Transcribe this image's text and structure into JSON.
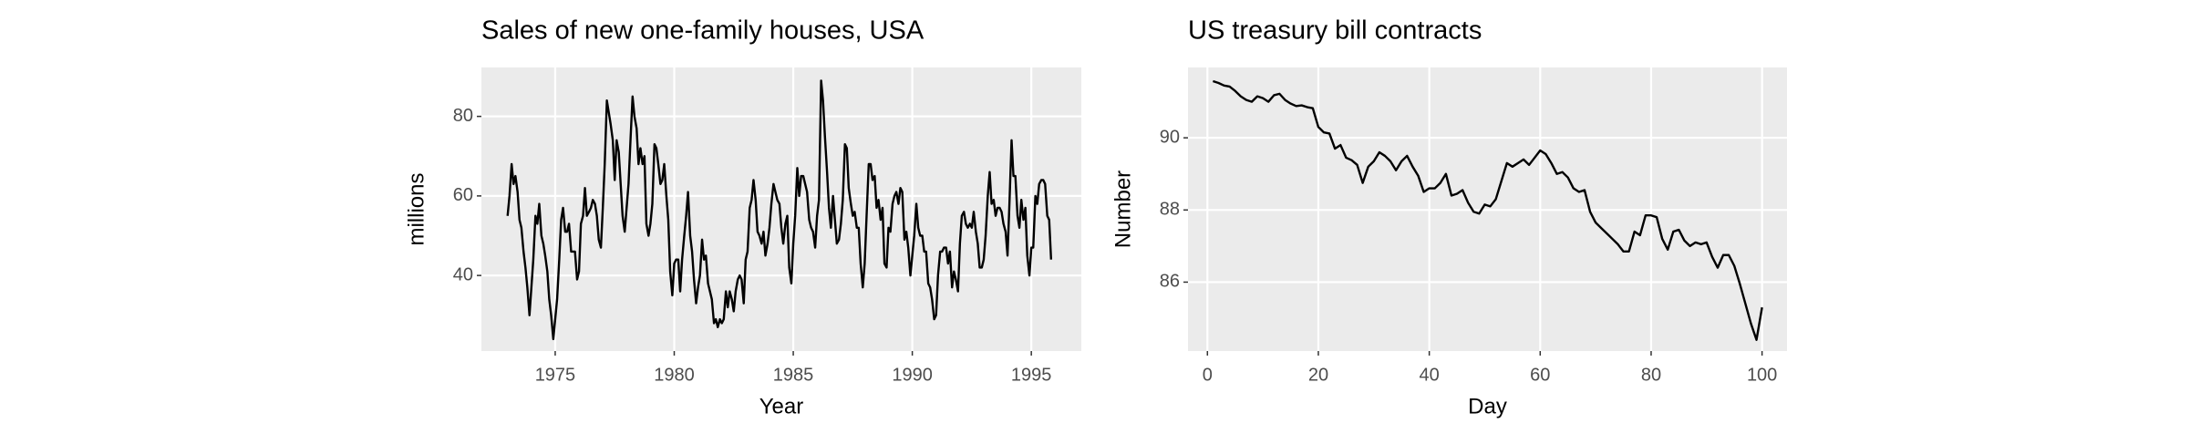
{
  "chart_data": [
    {
      "type": "line",
      "title": "Sales of new one-family houses, USA",
      "xlabel": "Year",
      "ylabel": "millions",
      "color": "#000000",
      "grid": true,
      "xlim": [
        1971.9,
        1997.1
      ],
      "ylim": [
        21,
        92.3
      ],
      "xticks": [
        1975,
        1980,
        1985,
        1990,
        1995
      ],
      "yticks": [
        40,
        60,
        80
      ],
      "x": [
        1973,
        1973.08,
        1973.17,
        1973.25,
        1973.33,
        1973.42,
        1973.5,
        1973.58,
        1973.67,
        1973.75,
        1973.83,
        1973.92,
        1974,
        1974.08,
        1974.17,
        1974.25,
        1974.33,
        1974.42,
        1974.5,
        1974.58,
        1974.67,
        1974.75,
        1974.83,
        1974.92,
        1975,
        1975.08,
        1975.17,
        1975.25,
        1975.33,
        1975.42,
        1975.5,
        1975.58,
        1975.67,
        1975.75,
        1975.83,
        1975.92,
        1976,
        1976.08,
        1976.17,
        1976.25,
        1976.33,
        1976.42,
        1976.5,
        1976.58,
        1976.67,
        1976.75,
        1976.83,
        1976.92,
        1977,
        1977.08,
        1977.17,
        1977.25,
        1977.33,
        1977.42,
        1977.5,
        1977.58,
        1977.67,
        1977.75,
        1977.83,
        1977.92,
        1978,
        1978.08,
        1978.17,
        1978.25,
        1978.33,
        1978.42,
        1978.5,
        1978.58,
        1978.67,
        1978.75,
        1978.83,
        1978.92,
        1979,
        1979.08,
        1979.17,
        1979.25,
        1979.33,
        1979.42,
        1979.5,
        1979.58,
        1979.67,
        1979.75,
        1979.83,
        1979.92,
        1980,
        1980.08,
        1980.17,
        1980.25,
        1980.33,
        1980.42,
        1980.5,
        1980.58,
        1980.67,
        1980.75,
        1980.83,
        1980.92,
        1981,
        1981.08,
        1981.17,
        1981.25,
        1981.33,
        1981.42,
        1981.5,
        1981.58,
        1981.67,
        1981.75,
        1981.83,
        1981.92,
        1982,
        1982.08,
        1982.17,
        1982.25,
        1982.33,
        1982.42,
        1982.5,
        1982.58,
        1982.67,
        1982.75,
        1982.83,
        1982.92,
        1983,
        1983.08,
        1983.17,
        1983.25,
        1983.33,
        1983.42,
        1983.5,
        1983.58,
        1983.67,
        1983.75,
        1983.83,
        1983.92,
        1984,
        1984.08,
        1984.17,
        1984.25,
        1984.33,
        1984.42,
        1984.5,
        1984.58,
        1984.67,
        1984.75,
        1984.83,
        1984.92,
        1985,
        1985.08,
        1985.17,
        1985.25,
        1985.33,
        1985.42,
        1985.5,
        1985.58,
        1985.67,
        1985.75,
        1985.83,
        1985.92,
        1986,
        1986.08,
        1986.17,
        1986.25,
        1986.33,
        1986.42,
        1986.5,
        1986.58,
        1986.67,
        1986.75,
        1986.83,
        1986.92,
        1987,
        1987.08,
        1987.17,
        1987.25,
        1987.33,
        1987.42,
        1987.5,
        1987.58,
        1987.67,
        1987.75,
        1987.83,
        1987.92,
        1988,
        1988.08,
        1988.17,
        1988.25,
        1988.33,
        1988.42,
        1988.5,
        1988.58,
        1988.67,
        1988.75,
        1988.83,
        1988.92,
        1989,
        1989.08,
        1989.17,
        1989.25,
        1989.33,
        1989.42,
        1989.5,
        1989.58,
        1989.67,
        1989.75,
        1989.83,
        1989.92,
        1990,
        1990.08,
        1990.17,
        1990.25,
        1990.33,
        1990.42,
        1990.5,
        1990.58,
        1990.67,
        1990.75,
        1990.83,
        1990.92,
        1991,
        1991.08,
        1991.17,
        1991.25,
        1991.33,
        1991.42,
        1991.5,
        1991.58,
        1991.67,
        1991.75,
        1991.83,
        1991.92,
        1992,
        1992.08,
        1992.17,
        1992.25,
        1992.33,
        1992.42,
        1992.5,
        1992.58,
        1992.67,
        1992.75,
        1992.83,
        1992.92,
        1993,
        1993.08,
        1993.17,
        1993.25,
        1993.33,
        1993.42,
        1993.5,
        1993.58,
        1993.67,
        1993.75,
        1993.83,
        1993.92,
        1994,
        1994.08,
        1994.17,
        1994.25,
        1994.33,
        1994.42,
        1994.5,
        1994.58,
        1994.67,
        1994.75,
        1994.83,
        1994.92,
        1995,
        1995.08,
        1995.17,
        1995.25,
        1995.33,
        1995.42,
        1995.5,
        1995.58,
        1995.67,
        1995.75,
        1995.83
      ],
      "values": [
        55,
        60,
        68,
        63,
        65,
        61,
        54,
        52,
        46,
        42,
        37,
        30,
        37,
        44,
        55,
        53,
        58,
        50,
        48,
        45,
        41,
        34,
        30,
        24,
        29,
        34,
        44,
        54,
        57,
        51,
        51,
        53,
        46,
        46,
        46,
        39,
        41,
        53,
        55,
        62,
        55,
        56,
        57,
        59,
        58,
        55,
        49,
        47,
        57,
        68,
        84,
        81,
        78,
        74,
        64,
        74,
        71,
        63,
        55,
        51,
        57,
        63,
        75,
        85,
        80,
        77,
        68,
        72,
        68,
        70,
        53,
        50,
        53,
        58,
        73,
        72,
        68,
        63,
        64,
        68,
        60,
        54,
        41,
        35,
        43,
        44,
        44,
        36,
        44,
        50,
        55,
        61,
        50,
        46,
        39,
        33,
        37,
        40,
        49,
        44,
        45,
        38,
        36,
        34,
        28,
        29,
        27,
        29,
        28,
        29,
        36,
        32,
        36,
        34,
        31,
        36,
        39,
        40,
        39,
        33,
        44,
        46,
        57,
        59,
        64,
        59,
        51,
        50,
        48,
        51,
        45,
        48,
        52,
        58,
        63,
        61,
        59,
        58,
        52,
        48,
        53,
        55,
        42,
        38,
        48,
        55,
        67,
        60,
        65,
        65,
        63,
        61,
        54,
        52,
        51,
        47,
        55,
        59,
        89,
        84,
        75,
        66,
        57,
        52,
        60,
        54,
        48,
        49,
        53,
        59,
        73,
        72,
        62,
        58,
        55,
        56,
        52,
        52,
        43,
        37,
        43,
        55,
        68,
        68,
        64,
        65,
        57,
        59,
        54,
        57,
        43,
        42,
        52,
        51,
        58,
        60,
        61,
        58,
        62,
        61,
        49,
        51,
        47,
        40,
        45,
        50,
        58,
        52,
        50,
        50,
        46,
        46,
        38,
        37,
        34,
        29,
        30,
        40,
        46,
        46,
        47,
        47,
        43,
        46,
        37,
        41,
        39,
        36,
        48,
        55,
        56,
        53,
        52,
        53,
        52,
        56,
        51,
        48,
        42,
        42,
        44,
        50,
        60,
        66,
        58,
        59,
        55,
        57,
        57,
        56,
        53,
        51,
        45,
        58,
        74,
        65,
        65,
        55,
        52,
        59,
        54,
        57,
        45,
        40,
        47,
        47,
        60,
        58,
        63,
        64,
        64,
        63,
        55,
        54,
        44
      ]
    },
    {
      "type": "line",
      "title": "US treasury bill contracts",
      "xlabel": "Day",
      "ylabel": "Number",
      "color": "#000000",
      "grid": true,
      "xlim": [
        -3.5,
        104.5
      ],
      "ylim": [
        84.09,
        91.95
      ],
      "xticks": [
        0,
        20,
        40,
        60,
        80,
        100
      ],
      "yticks": [
        86,
        88,
        90
      ],
      "x": [
        1,
        2,
        3,
        4,
        5,
        6,
        7,
        8,
        9,
        10,
        11,
        12,
        13,
        14,
        15,
        16,
        17,
        18,
        19,
        20,
        21,
        22,
        23,
        24,
        25,
        26,
        27,
        28,
        29,
        30,
        31,
        32,
        33,
        34,
        35,
        36,
        37,
        38,
        39,
        40,
        41,
        42,
        43,
        44,
        45,
        46,
        47,
        48,
        49,
        50,
        51,
        52,
        53,
        54,
        55,
        56,
        57,
        58,
        59,
        60,
        61,
        62,
        63,
        64,
        65,
        66,
        67,
        68,
        69,
        70,
        71,
        72,
        73,
        74,
        75,
        76,
        77,
        78,
        79,
        80,
        81,
        82,
        83,
        84,
        85,
        86,
        87,
        88,
        89,
        90,
        91,
        92,
        93,
        94,
        95,
        96,
        97,
        98,
        99,
        100
      ],
      "values": [
        91.57,
        91.52,
        91.45,
        91.42,
        91.3,
        91.15,
        91.05,
        91.0,
        91.15,
        91.1,
        91.0,
        91.18,
        91.22,
        91.05,
        90.95,
        90.88,
        90.9,
        90.85,
        90.82,
        90.3,
        90.15,
        90.12,
        89.7,
        89.8,
        89.45,
        89.38,
        89.25,
        88.75,
        89.2,
        89.35,
        89.6,
        89.5,
        89.35,
        89.1,
        89.35,
        89.5,
        89.2,
        88.95,
        88.5,
        88.6,
        88.6,
        88.75,
        89.0,
        88.4,
        88.45,
        88.55,
        88.2,
        87.95,
        87.9,
        88.15,
        88.1,
        88.3,
        88.8,
        89.3,
        89.2,
        89.3,
        89.4,
        89.25,
        89.45,
        89.65,
        89.55,
        89.3,
        89.0,
        89.05,
        88.9,
        88.6,
        88.5,
        88.55,
        87.95,
        87.65,
        87.5,
        87.35,
        87.2,
        87.05,
        86.85,
        86.85,
        87.4,
        87.3,
        87.85,
        87.85,
        87.8,
        87.2,
        86.9,
        87.4,
        87.45,
        87.15,
        87.0,
        87.1,
        87.05,
        87.1,
        86.7,
        86.4,
        86.75,
        86.75,
        86.45,
        85.95,
        85.4,
        84.85,
        84.4,
        85.3
      ]
    }
  ]
}
